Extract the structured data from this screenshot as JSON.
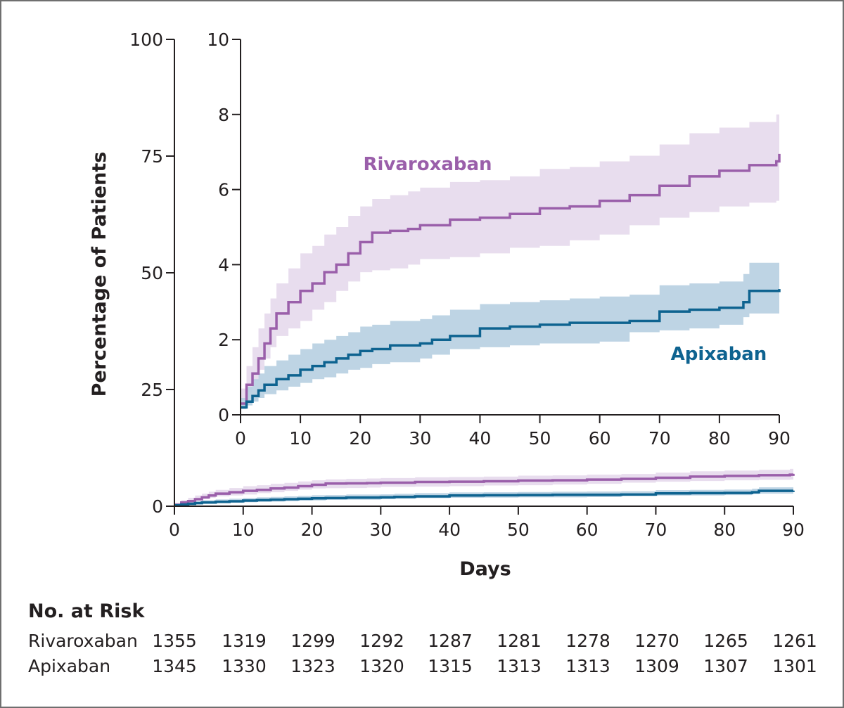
{
  "chart_data": [
    {
      "name": "main",
      "type": "line",
      "xlabel": "Days",
      "ylabel": "Percentage of Patients",
      "xlim": [
        0,
        90
      ],
      "ylim": [
        0,
        100
      ],
      "xticks": [
        "0",
        "10",
        "20",
        "30",
        "40",
        "50",
        "60",
        "70",
        "80",
        "90"
      ],
      "yticks": [
        "0",
        "25",
        "50",
        "75",
        "100"
      ],
      "grid": false,
      "series": [
        {
          "name": "Rivaroxaban",
          "color": "#9a5faa",
          "band_color": "#e6d9ec",
          "x": [
            0,
            1,
            2,
            3,
            4,
            5,
            6,
            8,
            10,
            12,
            14,
            16,
            18,
            20,
            22,
            25,
            28,
            30,
            35,
            40,
            45,
            50,
            55,
            60,
            65,
            70,
            75,
            80,
            85,
            89.5,
            90
          ],
          "y": [
            0.3,
            0.8,
            1.1,
            1.5,
            1.9,
            2.3,
            2.7,
            3.0,
            3.3,
            3.5,
            3.8,
            4.0,
            4.3,
            4.6,
            4.85,
            4.9,
            4.95,
            5.05,
            5.2,
            5.25,
            5.35,
            5.5,
            5.55,
            5.7,
            5.85,
            6.1,
            6.35,
            6.5,
            6.65,
            6.75,
            6.95
          ],
          "lo": [
            0.15,
            0.4,
            0.6,
            0.9,
            1.2,
            1.5,
            1.8,
            2.1,
            2.3,
            2.5,
            2.8,
            3.0,
            3.3,
            3.55,
            3.8,
            3.85,
            3.9,
            4.0,
            4.15,
            4.2,
            4.3,
            4.45,
            4.5,
            4.65,
            4.8,
            5.05,
            5.25,
            5.4,
            5.55,
            5.65,
            5.7
          ],
          "hi": [
            0.7,
            1.3,
            1.8,
            2.3,
            2.7,
            3.1,
            3.5,
            3.9,
            4.3,
            4.5,
            4.8,
            5.0,
            5.3,
            5.55,
            5.75,
            5.85,
            5.95,
            6.05,
            6.2,
            6.25,
            6.35,
            6.55,
            6.6,
            6.75,
            6.9,
            7.2,
            7.5,
            7.65,
            7.8,
            8.0,
            8.3
          ]
        },
        {
          "name": "Apixaban",
          "color": "#0e6390",
          "band_color": "#b7cfe1",
          "x": [
            0,
            1,
            2,
            3,
            4,
            6,
            8,
            10,
            12,
            14,
            16,
            18,
            20,
            22,
            25,
            30,
            32,
            35,
            40,
            45,
            50,
            55,
            60,
            65,
            70,
            75,
            80,
            84,
            85,
            90
          ],
          "y": [
            0.2,
            0.35,
            0.5,
            0.65,
            0.8,
            0.95,
            1.05,
            1.2,
            1.3,
            1.4,
            1.5,
            1.6,
            1.7,
            1.75,
            1.85,
            1.9,
            2.0,
            2.1,
            2.3,
            2.35,
            2.4,
            2.45,
            2.45,
            2.5,
            2.75,
            2.8,
            2.85,
            3.0,
            3.3,
            3.35
          ],
          "lo": [
            0.1,
            0.15,
            0.25,
            0.35,
            0.45,
            0.55,
            0.65,
            0.75,
            0.85,
            0.95,
            1.0,
            1.1,
            1.2,
            1.25,
            1.35,
            1.4,
            1.5,
            1.6,
            1.75,
            1.8,
            1.85,
            1.9,
            1.9,
            1.95,
            2.2,
            2.25,
            2.3,
            2.4,
            2.6,
            2.7
          ],
          "hi": [
            0.45,
            0.75,
            0.95,
            1.1,
            1.3,
            1.45,
            1.6,
            1.75,
            1.9,
            2.0,
            2.1,
            2.2,
            2.35,
            2.4,
            2.5,
            2.55,
            2.65,
            2.8,
            2.95,
            3.0,
            3.05,
            3.1,
            3.15,
            3.2,
            3.45,
            3.5,
            3.55,
            3.75,
            4.05,
            4.3
          ]
        }
      ]
    },
    {
      "name": "inset",
      "type": "line",
      "xlim": [
        0,
        90
      ],
      "ylim": [
        0,
        10
      ],
      "xticks": [
        "0",
        "10",
        "20",
        "30",
        "40",
        "50",
        "60",
        "70",
        "80",
        "90"
      ],
      "yticks": [
        "0",
        "2",
        "4",
        "6",
        "8",
        "10"
      ],
      "grid": false,
      "labels": {
        "rivaroxaban": "Rivaroxaban",
        "apixaban": "Apixaban"
      }
    }
  ],
  "risk_table": {
    "title": "No. at Risk",
    "rows": [
      {
        "label": "Rivaroxaban",
        "values": [
          "1355",
          "1319",
          "1299",
          "1292",
          "1287",
          "1281",
          "1278",
          "1270",
          "1265",
          "1261"
        ]
      },
      {
        "label": "Apixaban",
        "values": [
          "1345",
          "1330",
          "1323",
          "1320",
          "1315",
          "1313",
          "1313",
          "1309",
          "1307",
          "1301"
        ]
      }
    ]
  }
}
